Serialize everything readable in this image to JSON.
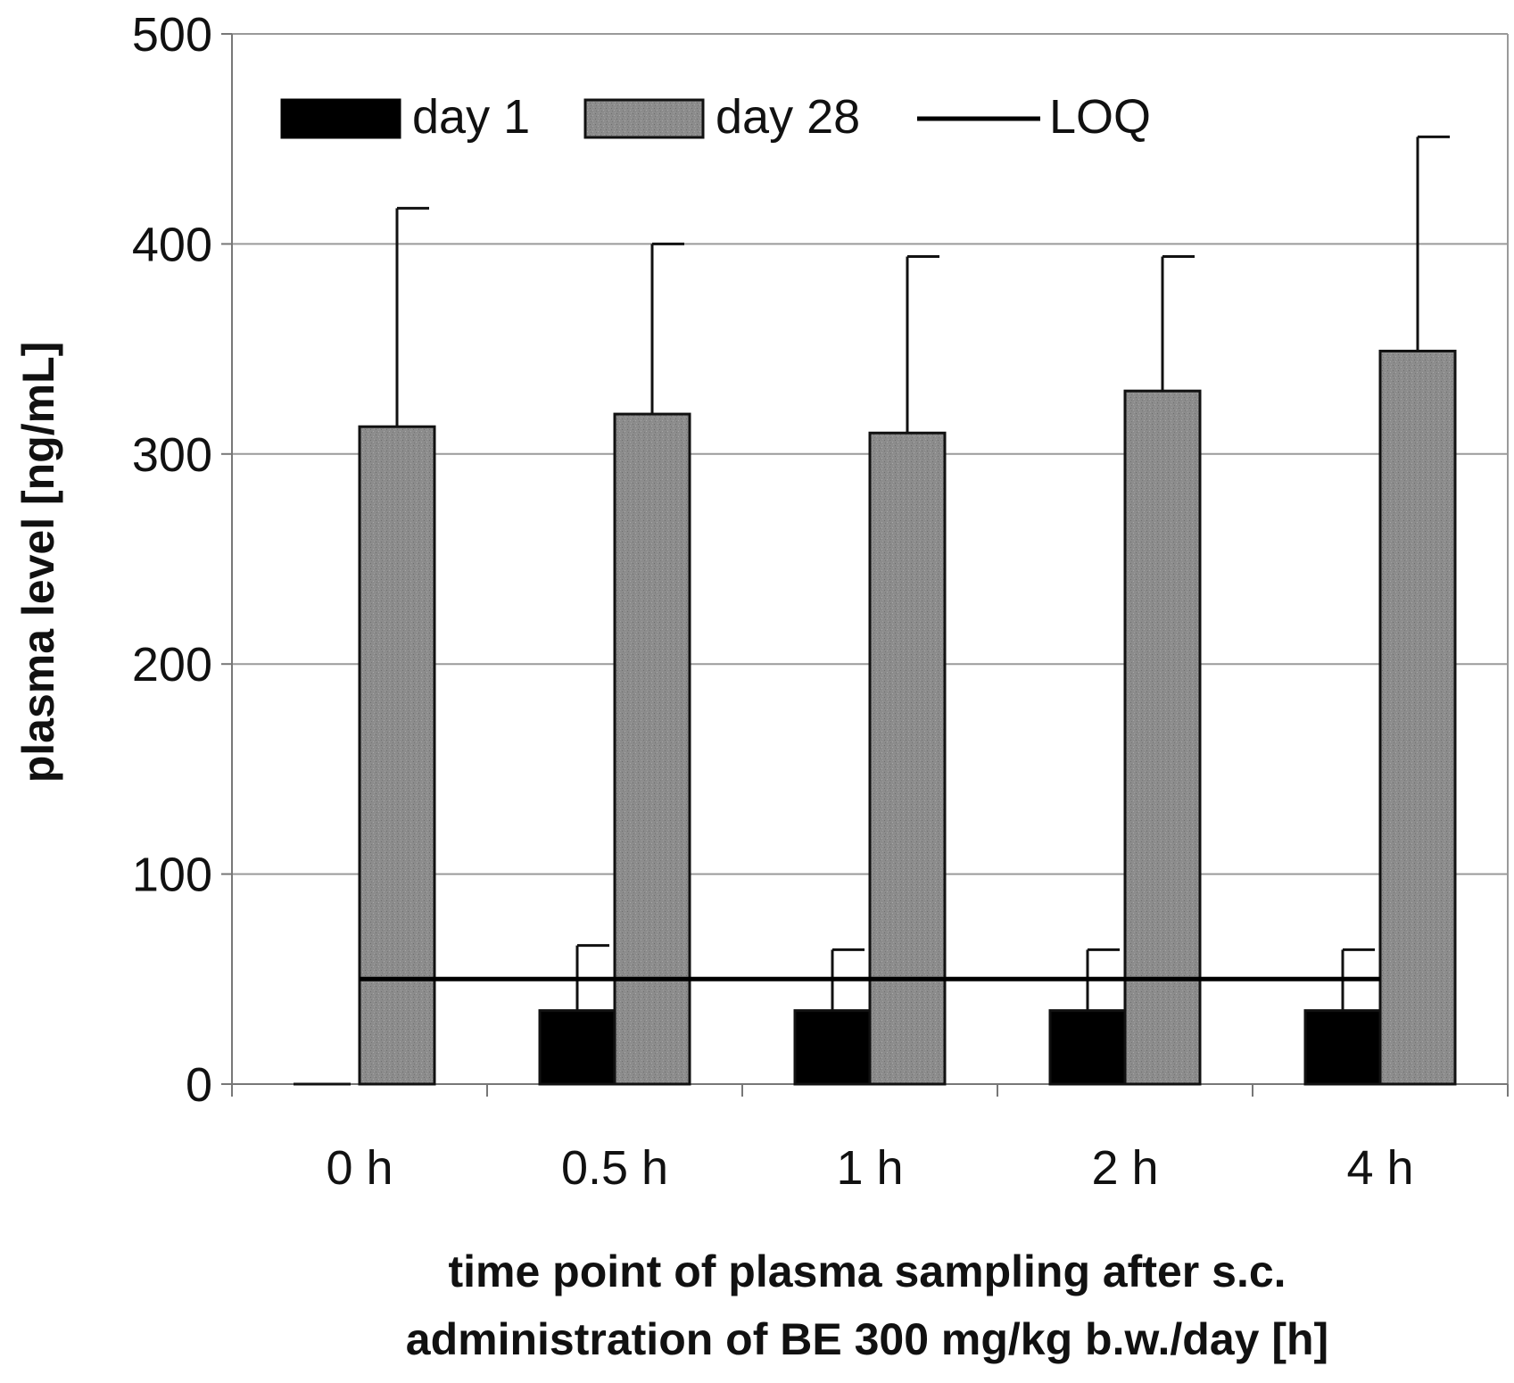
{
  "chart_data": {
    "type": "bar",
    "title": "",
    "categories": [
      "0 h",
      "0.5 h",
      "1 h",
      "2 h",
      "4 h"
    ],
    "series": [
      {
        "name": "day 1",
        "values": [
          0,
          35,
          35,
          35,
          35
        ],
        "error_upper": [
          0,
          66,
          64,
          64,
          64
        ],
        "color": "#000000"
      },
      {
        "name": "day 28",
        "values": [
          313,
          319,
          310,
          330,
          349
        ],
        "error_upper": [
          417,
          400,
          394,
          394,
          451
        ],
        "color": "#8c8c8c"
      }
    ],
    "reference_line": {
      "name": "LOQ",
      "value": 50,
      "color": "#000000"
    },
    "ylim": [
      0,
      500
    ],
    "yticks": [
      "0",
      "100",
      "200",
      "300",
      "400",
      "500"
    ],
    "ylabel": "plasma level [ng/mL]",
    "xlabel_lines": [
      "time point of plasma sampling after s.c.",
      "administration of BE 300 mg/kg b.w./day [h]"
    ],
    "legend_position": "top-left",
    "grid": true
  }
}
